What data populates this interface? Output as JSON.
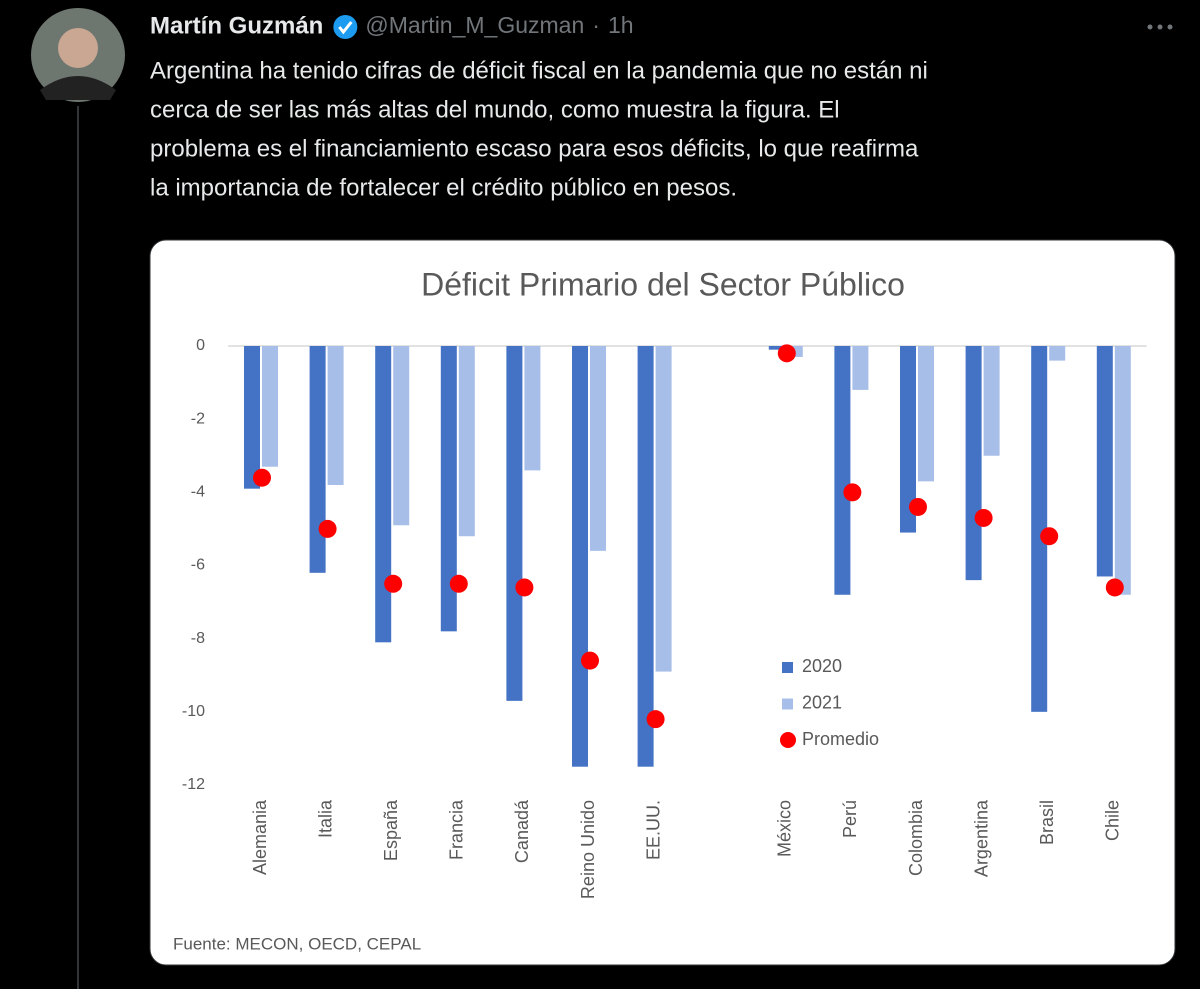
{
  "tweet": {
    "author": {
      "name": "Martín Guzmán",
      "handle": "@Martin_M_Guzman",
      "separator": "·",
      "time": "1h"
    },
    "text_lines": [
      "Argentina ha tenido cifras de déficit fiscal en la pandemia que no están ni",
      "cerca de ser las más altas del mundo, como muestra la figura. El",
      "problema es el financiamiento escaso para esos déficits, lo que reafirma",
      "la importancia de fortalecer el crédito público en pesos."
    ]
  },
  "chart_data": {
    "type": "bar",
    "title": "Déficit Primario del Sector Público",
    "source": "Fuente: MECON, OECD, CEPAL",
    "categories": [
      "Alemania",
      "Italia",
      "España",
      "Francia",
      "Canadá",
      "Reino Unido",
      "EE.UU.",
      null,
      "México",
      "Perú",
      "Colombia",
      "Argentina",
      "Brasil",
      "Chile"
    ],
    "series": [
      {
        "name": "2020",
        "color": "#4472c4",
        "mark": "bar",
        "values": [
          -3.9,
          -6.2,
          -8.1,
          -7.8,
          -9.7,
          -11.5,
          -11.5,
          null,
          -0.1,
          -6.8,
          -5.1,
          -6.4,
          -10.0,
          -6.3
        ]
      },
      {
        "name": "2021",
        "color": "#a7bfe8",
        "mark": "bar",
        "values": [
          -3.3,
          -3.8,
          -4.9,
          -5.2,
          -3.4,
          -5.6,
          -8.9,
          null,
          -0.3,
          -1.2,
          -3.7,
          -3.0,
          -0.4,
          -6.8
        ]
      },
      {
        "name": "Promedio",
        "color": "#ff0000",
        "mark": "dot",
        "values": [
          -3.6,
          -5.0,
          -6.5,
          -6.5,
          -6.6,
          -8.6,
          -10.2,
          null,
          -0.2,
          -4.0,
          -4.4,
          -4.7,
          -5.2,
          -6.6
        ]
      }
    ],
    "ylim": [
      -12,
      0
    ],
    "yticks": [
      0,
      -2,
      -4,
      -6,
      -8,
      -10,
      -12
    ],
    "grid": false
  }
}
